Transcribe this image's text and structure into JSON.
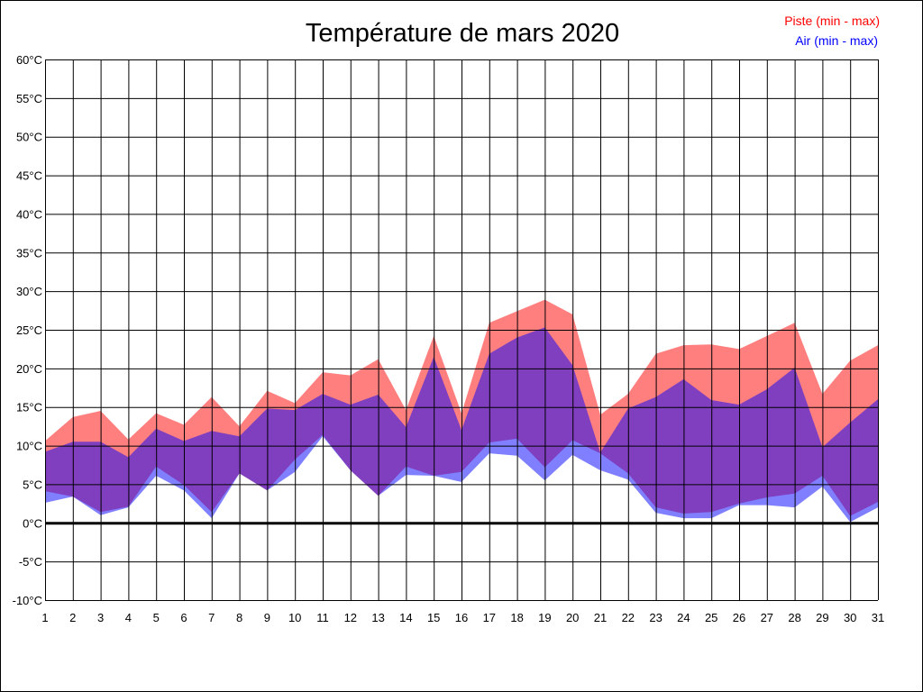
{
  "chart_data": {
    "type": "area",
    "title": "Température de mars 2020",
    "xlabel": "",
    "ylabel": "",
    "x": [
      1,
      2,
      3,
      4,
      5,
      6,
      7,
      8,
      9,
      10,
      11,
      12,
      13,
      14,
      15,
      16,
      17,
      18,
      19,
      20,
      21,
      22,
      23,
      24,
      25,
      26,
      27,
      28,
      29,
      30,
      31
    ],
    "ylim": [
      -10,
      60
    ],
    "yticks": [
      -10,
      -5,
      0,
      5,
      10,
      15,
      20,
      25,
      30,
      35,
      40,
      45,
      50,
      55,
      60
    ],
    "ytick_suffix": "°C",
    "grid": true,
    "legend_placement": "top-right",
    "series": [
      {
        "name": "Piste (min - max)",
        "color": "#ff0000",
        "fill": "#ff8080",
        "min": [
          4.1,
          3.4,
          1.4,
          2.1,
          7.3,
          4.9,
          1.4,
          6.4,
          4.2,
          8.2,
          11.4,
          6.8,
          3.5,
          7.3,
          6.1,
          6.6,
          10.4,
          10.9,
          7.2,
          10.7,
          9.0,
          6.4,
          2.0,
          1.2,
          1.4,
          2.5,
          3.3,
          3.8,
          6.1,
          0.9,
          2.7
        ],
        "max": [
          10.6,
          13.7,
          14.5,
          10.8,
          14.2,
          12.7,
          16.3,
          12.5,
          17.1,
          15.5,
          19.5,
          19.1,
          21.2,
          14.6,
          24.2,
          14.2,
          25.9,
          27.4,
          28.9,
          27.0,
          14.0,
          16.7,
          21.9,
          23.0,
          23.1,
          22.5,
          24.2,
          25.9,
          16.7,
          21.0,
          23.0
        ]
      },
      {
        "name": "Air (min - max)",
        "color": "#0000ff",
        "fill": "#8080ff",
        "min": [
          2.6,
          3.4,
          1.0,
          2.0,
          6.1,
          4.2,
          0.6,
          6.4,
          4.2,
          6.6,
          11.2,
          6.8,
          3.5,
          6.2,
          6.1,
          5.3,
          9.0,
          8.7,
          5.5,
          8.8,
          6.8,
          5.6,
          1.3,
          0.6,
          0.6,
          2.3,
          2.3,
          2.0,
          4.7,
          0.1,
          2.0
        ],
        "max": [
          9.2,
          10.5,
          10.5,
          8.5,
          12.2,
          10.6,
          11.9,
          11.2,
          14.8,
          14.6,
          16.7,
          15.3,
          16.6,
          12.4,
          21.5,
          12.0,
          21.9,
          24.0,
          25.3,
          20.4,
          9.1,
          14.8,
          16.3,
          18.6,
          15.9,
          15.3,
          17.3,
          20.1,
          9.8,
          13.0,
          16.0
        ]
      }
    ]
  }
}
